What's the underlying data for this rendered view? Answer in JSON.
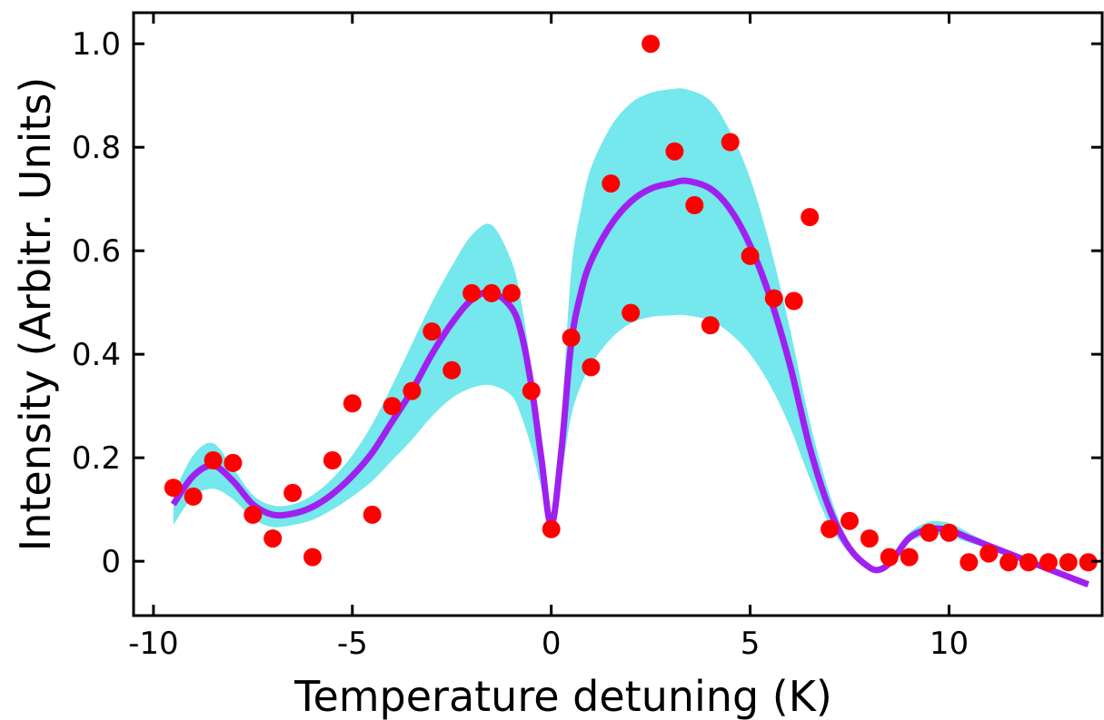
{
  "chart_data": {
    "type": "scatter",
    "title": "",
    "xlabel": "Temperature detuning (K)",
    "ylabel": "Intensity (Arbitr. Units)",
    "xlim": [
      -10.5,
      13.85
    ],
    "ylim": [
      -0.105,
      1.06
    ],
    "x_ticks": [
      -10,
      -5,
      0,
      5,
      10
    ],
    "x_tick_labels": [
      "-10",
      "-5",
      "0",
      "5",
      "10"
    ],
    "y_ticks": [
      0,
      0.2,
      0.4,
      0.6,
      0.8,
      1.0
    ],
    "y_tick_labels": [
      "0",
      "0.2",
      "0.4",
      "0.6",
      "0.8",
      "1.0"
    ],
    "grid": false,
    "colors": {
      "points": "#ff0000",
      "fit_line": "#a020f0",
      "band": "#74e8ec"
    },
    "series": [
      {
        "kind": "points",
        "x": [
          -9.5,
          -9.0,
          -8.5,
          -8.0,
          -7.5,
          -7.0,
          -6.5,
          -6.0,
          -5.5,
          -5.0,
          -4.5,
          -4.0,
          -3.5,
          -3.0,
          -2.5,
          -2.0,
          -1.5,
          -1.0,
          -0.5,
          0.0,
          0.5,
          1.0,
          1.5,
          2.0,
          2.5,
          3.1,
          3.6,
          4.0,
          4.5,
          5.0,
          5.6,
          6.1,
          6.5,
          7.0,
          7.5,
          8.0,
          8.5,
          9.0,
          9.5,
          10.0,
          10.5,
          11.0,
          11.5,
          12.0,
          12.5,
          13.0,
          13.5
        ],
        "y": [
          0.142,
          0.125,
          0.195,
          0.19,
          0.09,
          0.044,
          0.132,
          0.008,
          0.195,
          0.305,
          0.09,
          0.3,
          0.329,
          0.444,
          0.369,
          0.518,
          0.518,
          0.518,
          0.329,
          0.062,
          0.432,
          0.375,
          0.73,
          0.48,
          1.0,
          0.792,
          0.688,
          0.456,
          0.81,
          0.59,
          0.508,
          0.503,
          0.665,
          0.062,
          0.078,
          0.044,
          0.008,
          0.008,
          0.055,
          0.055,
          -0.002,
          0.015,
          -0.002,
          -0.002,
          -0.002,
          -0.002,
          -0.002
        ]
      },
      {
        "kind": "fit",
        "x": [
          -9.5,
          -9.0,
          -8.5,
          -8.0,
          -7.5,
          -7.0,
          -6.5,
          -6.0,
          -5.5,
          -5.0,
          -4.5,
          -4.0,
          -3.5,
          -3.0,
          -2.5,
          -2.0,
          -1.5,
          -1.0,
          -0.75,
          -0.5,
          -0.25,
          0.0,
          0.25,
          0.5,
          0.75,
          1.0,
          1.5,
          2.0,
          2.5,
          3.0,
          3.4,
          4.0,
          4.5,
          5.0,
          5.5,
          6.0,
          6.5,
          7.0,
          7.5,
          8.0,
          8.3,
          8.6,
          9.0,
          9.5,
          10.0,
          10.5,
          11.0,
          11.5,
          12.0,
          12.5,
          13.0,
          13.5
        ],
        "y": [
          0.11,
          0.165,
          0.185,
          0.155,
          0.11,
          0.09,
          0.092,
          0.105,
          0.13,
          0.165,
          0.21,
          0.27,
          0.33,
          0.4,
          0.46,
          0.505,
          0.52,
          0.49,
          0.44,
          0.34,
          0.2,
          0.07,
          0.21,
          0.42,
          0.52,
          0.58,
          0.65,
          0.695,
          0.72,
          0.73,
          0.735,
          0.72,
          0.68,
          0.61,
          0.51,
          0.38,
          0.22,
          0.1,
          0.025,
          -0.012,
          -0.015,
          0.005,
          0.045,
          0.062,
          0.06,
          0.045,
          0.03,
          0.015,
          0.0,
          -0.015,
          -0.03,
          -0.045
        ]
      },
      {
        "kind": "band",
        "x": [
          -9.5,
          -9.0,
          -8.5,
          -8.0,
          -7.5,
          -7.0,
          -6.5,
          -6.0,
          -5.5,
          -5.0,
          -4.5,
          -4.0,
          -3.5,
          -3.0,
          -2.5,
          -2.0,
          -1.5,
          -1.0,
          -0.75,
          -0.5,
          -0.25,
          0.0,
          0.25,
          0.5,
          0.75,
          1.0,
          1.5,
          2.0,
          2.5,
          3.0,
          3.4,
          4.0,
          4.5,
          5.0,
          5.5,
          6.0,
          6.5,
          7.0,
          7.5,
          8.0,
          8.3,
          8.6,
          9.0,
          9.5,
          10.0,
          10.5,
          11.0,
          11.5,
          12.0,
          12.5,
          13.0,
          13.5
        ],
        "upper": [
          0.13,
          0.205,
          0.228,
          0.18,
          0.128,
          0.108,
          0.11,
          0.128,
          0.16,
          0.205,
          0.265,
          0.34,
          0.42,
          0.5,
          0.57,
          0.63,
          0.65,
          0.58,
          0.5,
          0.37,
          0.22,
          0.085,
          0.27,
          0.56,
          0.68,
          0.76,
          0.84,
          0.885,
          0.905,
          0.912,
          0.912,
          0.89,
          0.83,
          0.74,
          0.61,
          0.45,
          0.27,
          0.13,
          0.035,
          -0.008,
          -0.012,
          0.01,
          0.055,
          0.076,
          0.074,
          0.055,
          0.035,
          0.018,
          0.002,
          -0.013,
          -0.028,
          -0.043
        ],
        "lower": [
          0.07,
          0.125,
          0.14,
          0.12,
          0.082,
          0.066,
          0.07,
          0.08,
          0.1,
          0.125,
          0.155,
          0.195,
          0.235,
          0.28,
          0.315,
          0.335,
          0.34,
          0.32,
          0.28,
          0.22,
          0.14,
          0.055,
          0.16,
          0.28,
          0.34,
          0.38,
          0.43,
          0.46,
          0.472,
          0.475,
          0.475,
          0.465,
          0.44,
          0.4,
          0.34,
          0.26,
          0.16,
          0.07,
          0.015,
          -0.016,
          -0.018,
          0.0,
          0.037,
          0.05,
          0.048,
          0.036,
          0.025,
          0.012,
          -0.002,
          -0.017,
          -0.032,
          -0.047
        ]
      }
    ]
  }
}
